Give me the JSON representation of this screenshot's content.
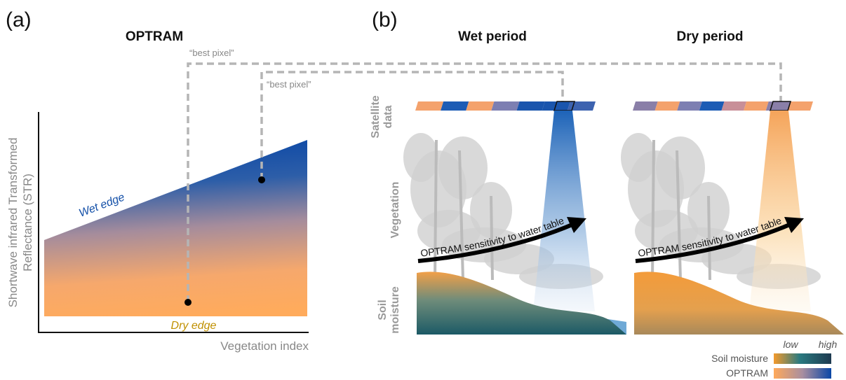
{
  "panel_a": {
    "label": "(a)",
    "title": "OPTRAM",
    "y_axis_label": [
      "Shortwave infrared Transformed",
      "Reflectance (STR)"
    ],
    "x_axis_label": "Vegetation index",
    "wet_edge": "Wet edge",
    "dry_edge": "Dry edge",
    "best_pixel_labels": [
      "“best pixel”",
      "“best pixel”"
    ]
  },
  "panel_b": {
    "label": "(b)",
    "row_labels": {
      "satellite": [
        "Satellite",
        "data"
      ],
      "vegetation": "Vegetation",
      "soil": [
        "Soil",
        "moisture"
      ]
    },
    "scenes": [
      {
        "title": "Wet period",
        "arrow_label": "OPTRAM sensitivity to water table"
      },
      {
        "title": "Dry period",
        "arrow_label": "OPTRAM sensitivity to water table"
      }
    ]
  },
  "legend": {
    "low": "low",
    "high": "high",
    "items": [
      "Soil moisture",
      "OPTRAM"
    ]
  }
}
